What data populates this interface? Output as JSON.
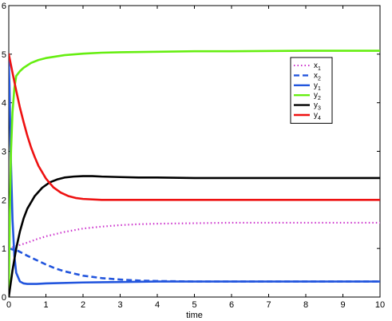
{
  "chart_data": {
    "type": "line",
    "title": "",
    "xlabel": "time",
    "ylabel": "",
    "xlim": [
      0,
      10
    ],
    "ylim": [
      0,
      6
    ],
    "xticks": [
      0,
      1,
      2,
      3,
      4,
      5,
      6,
      7,
      8,
      9,
      10
    ],
    "yticks": [
      0,
      1,
      2,
      3,
      4,
      5,
      6
    ],
    "grid": false,
    "legend": "top-right",
    "series": [
      {
        "name": "x1",
        "label_main": "x",
        "label_sub": "1",
        "color": "#cc33cc",
        "style": "dotted",
        "x": [
          0,
          0.25,
          0.5,
          0.75,
          1,
          1.5,
          2,
          2.5,
          3,
          3.5,
          4,
          5,
          6,
          7,
          8,
          9,
          10
        ],
        "y": [
          1.0,
          1.06,
          1.12,
          1.19,
          1.25,
          1.34,
          1.41,
          1.45,
          1.48,
          1.5,
          1.51,
          1.52,
          1.53,
          1.53,
          1.53,
          1.53,
          1.53
        ]
      },
      {
        "name": "x2",
        "label_main": "x",
        "label_sub": "2",
        "color": "#2255dd",
        "style": "dashed",
        "x": [
          0,
          0.25,
          0.5,
          0.75,
          1,
          1.25,
          1.5,
          2,
          2.5,
          3,
          3.5,
          4,
          5,
          6,
          8,
          10
        ],
        "y": [
          1.0,
          0.95,
          0.85,
          0.76,
          0.67,
          0.59,
          0.53,
          0.44,
          0.39,
          0.36,
          0.34,
          0.33,
          0.32,
          0.32,
          0.32,
          0.32
        ]
      },
      {
        "name": "y1",
        "label_main": "y",
        "label_sub": "1",
        "color": "#2255dd",
        "style": "solid",
        "x": [
          0,
          0.02,
          0.05,
          0.1,
          0.15,
          0.2,
          0.3,
          0.4,
          0.5,
          0.75,
          1,
          2,
          3,
          4,
          6,
          8,
          10
        ],
        "y": [
          4.9,
          4.3,
          3.0,
          1.6,
          0.85,
          0.5,
          0.32,
          0.28,
          0.27,
          0.27,
          0.28,
          0.3,
          0.31,
          0.32,
          0.32,
          0.32,
          0.32
        ]
      },
      {
        "name": "y2",
        "label_main": "y",
        "label_sub": "2",
        "color": "#66ee11",
        "style": "solid",
        "x": [
          0,
          0.03,
          0.06,
          0.1,
          0.15,
          0.2,
          0.3,
          0.4,
          0.6,
          0.8,
          1,
          1.5,
          2,
          2.5,
          3,
          4,
          5,
          6,
          8,
          10
        ],
        "y": [
          0,
          1.8,
          3.0,
          3.8,
          4.3,
          4.55,
          4.65,
          4.72,
          4.82,
          4.88,
          4.92,
          4.98,
          5.01,
          5.03,
          5.04,
          5.05,
          5.06,
          5.06,
          5.07,
          5.07
        ]
      },
      {
        "name": "y3",
        "label_main": "y",
        "label_sub": "3",
        "color": "#000000",
        "style": "solid",
        "x": [
          0,
          0.1,
          0.2,
          0.3,
          0.4,
          0.5,
          0.7,
          0.9,
          1.1,
          1.3,
          1.5,
          1.75,
          2,
          2.25,
          2.5,
          3,
          3.5,
          4,
          5,
          6,
          8,
          10
        ],
        "y": [
          0,
          0.55,
          1.0,
          1.35,
          1.62,
          1.82,
          2.08,
          2.25,
          2.36,
          2.42,
          2.46,
          2.48,
          2.49,
          2.49,
          2.48,
          2.47,
          2.46,
          2.46,
          2.45,
          2.45,
          2.45,
          2.45
        ]
      },
      {
        "name": "y4",
        "label_main": "y",
        "label_sub": "4",
        "color": "#ee1111",
        "style": "solid",
        "x": [
          0,
          0.1,
          0.2,
          0.3,
          0.4,
          0.5,
          0.6,
          0.7,
          0.8,
          1,
          1.2,
          1.4,
          1.6,
          1.8,
          2,
          2.5,
          3,
          4,
          6,
          8,
          10
        ],
        "y": [
          5.0,
          4.62,
          4.25,
          3.9,
          3.6,
          3.32,
          3.08,
          2.88,
          2.7,
          2.44,
          2.26,
          2.15,
          2.08,
          2.04,
          2.02,
          2.0,
          2.0,
          2.0,
          2.0,
          2.0,
          2.0
        ]
      }
    ]
  }
}
